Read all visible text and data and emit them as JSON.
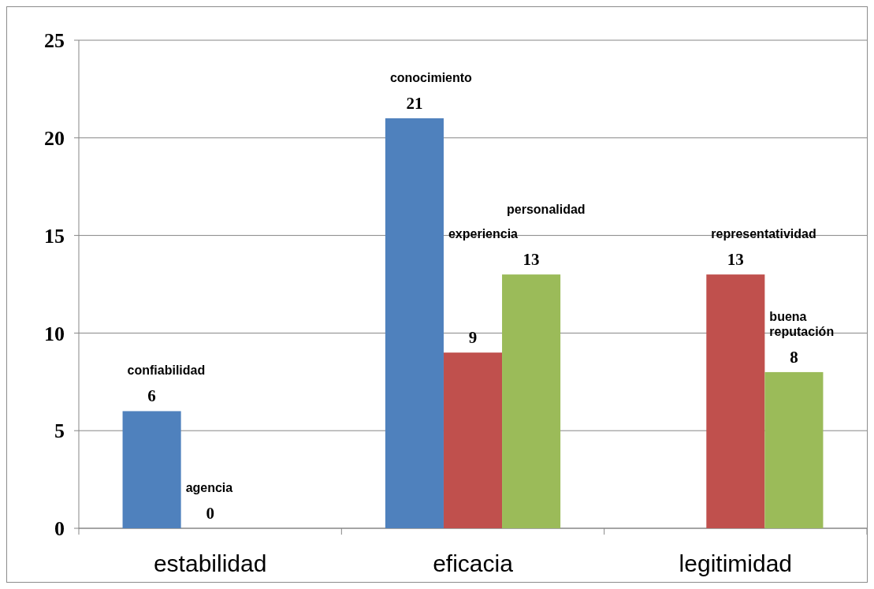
{
  "chart_data": {
    "type": "bar",
    "categories": [
      "estabilidad",
      "eficacia",
      "legitimidad"
    ],
    "series": [
      {
        "color": "#4f81bd",
        "values": [
          6,
          21,
          null
        ]
      },
      {
        "color": "#c0504d",
        "values": [
          0,
          9,
          13
        ]
      },
      {
        "color": "#9bbb59",
        "values": [
          null,
          13,
          8
        ]
      }
    ],
    "ylim": [
      0,
      25
    ],
    "yticks": [
      0,
      5,
      10,
      15,
      20,
      25
    ],
    "grid": "y",
    "data_labels": true,
    "annotations": [
      "confiabilidad",
      "agencia",
      "conocimiento",
      "experiencia",
      "personalidad",
      "representatividad",
      "buena reputación"
    ]
  }
}
